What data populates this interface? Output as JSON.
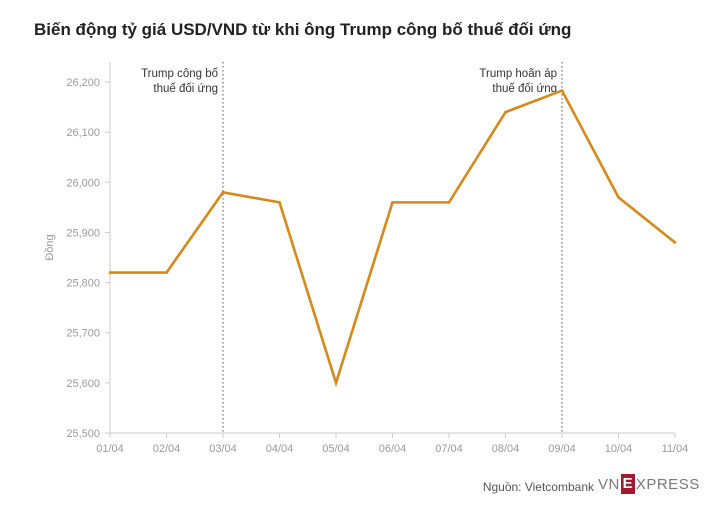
{
  "title": "Biến động tỷ giá USD/VND từ khi ông Trump công bố thuế đối ứng",
  "source": "Nguồn: Vietcombank",
  "logo": {
    "left": "VN",
    "mark": "E",
    "right": "XPRESS"
  },
  "chart_data": {
    "type": "line",
    "title": "Biến động tỷ giá USD/VND từ khi ông Trump công bố thuế đối ứng",
    "xlabel": "",
    "ylabel": "Đồng",
    "categories": [
      "01/04",
      "02/04",
      "03/04",
      "04/04",
      "05/04",
      "06/04",
      "07/04",
      "08/04",
      "09/04",
      "10/04",
      "11/04"
    ],
    "series": [
      {
        "values": [
          25820,
          25820,
          25980,
          25960,
          25600,
          25960,
          25960,
          26140,
          26183,
          25970,
          25880
        ]
      }
    ],
    "ylim": [
      25500,
      26250
    ],
    "yticks": [
      25500,
      25600,
      25700,
      25800,
      25900,
      26000,
      26100,
      26200
    ],
    "ytick_labels": [
      "25,500",
      "25,600",
      "25,700",
      "25,800",
      "25,900",
      "26,000",
      "26,100",
      "26,200"
    ],
    "grid": false,
    "line_color": "#d4891a",
    "annotations": [
      {
        "x": "03/04",
        "lines": [
          "Trump công bố",
          "thuế đối ứng"
        ]
      },
      {
        "x": "09/04",
        "lines": [
          "Trump hoãn áp",
          "thuế đối ứng"
        ]
      }
    ]
  }
}
